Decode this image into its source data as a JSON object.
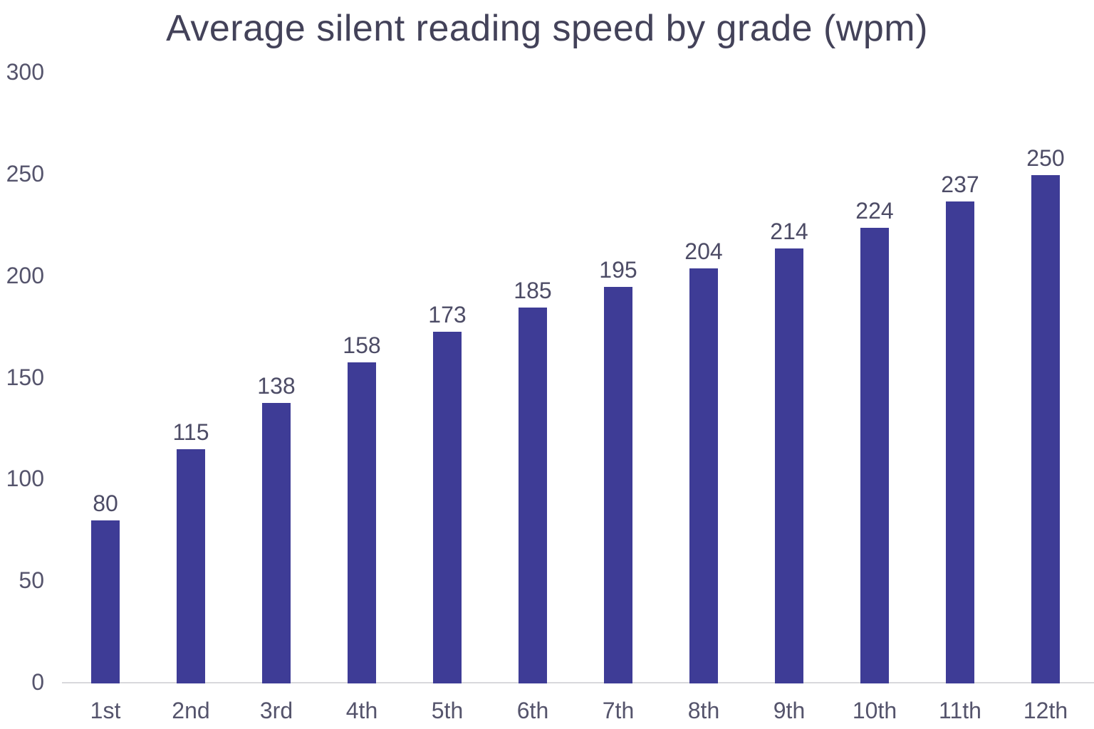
{
  "chart_data": {
    "type": "bar",
    "title": "Average silent reading speed by grade (wpm)",
    "categories": [
      "1st",
      "2nd",
      "3rd",
      "4th",
      "5th",
      "6th",
      "7th",
      "8th",
      "9th",
      "10th",
      "11th",
      "12th"
    ],
    "values": [
      80,
      115,
      138,
      158,
      173,
      185,
      195,
      204,
      214,
      224,
      237,
      250
    ],
    "value_labels": [
      "80",
      "115",
      "138",
      "158",
      "173",
      "185",
      "195",
      "204",
      "214",
      "224",
      "237",
      "250"
    ],
    "xlabel": "",
    "ylabel": "",
    "y_axis": {
      "ticks": [
        0,
        50,
        100,
        150,
        200,
        250,
        300
      ],
      "min": 0,
      "max": 300
    },
    "legend_position": "none",
    "grid": "off",
    "baseline_only": true,
    "colors": {
      "bar": "#3e3c96",
      "title_text": "#434259",
      "axis_text": "#55546c",
      "value_label_text": "#4d4c66",
      "baseline": "#d8d8dc",
      "background": "#ffffff"
    }
  }
}
